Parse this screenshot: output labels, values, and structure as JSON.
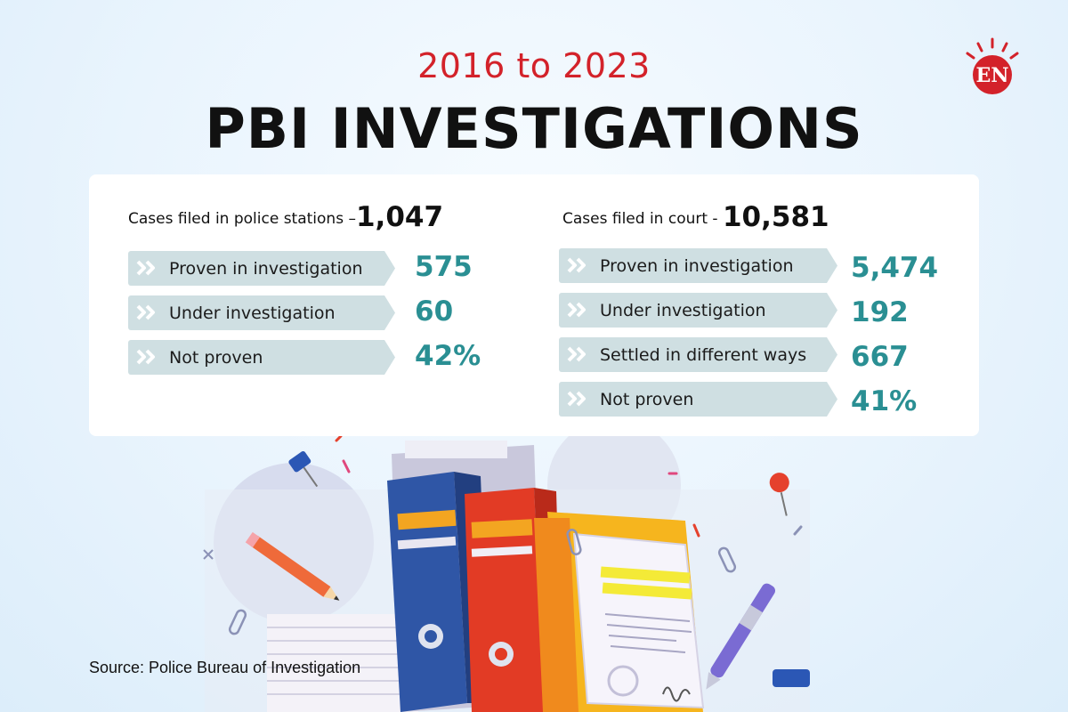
{
  "header": {
    "year_range": "2016 to 2023",
    "title": "PBI INVESTIGATIONS",
    "logo_text": "EN"
  },
  "police": {
    "heading": "Cases filed in police stations –",
    "total": "1,047",
    "rows": [
      {
        "label": "Proven in investigation",
        "value": "575"
      },
      {
        "label": "Under investigation",
        "value": "60"
      },
      {
        "label": "Not proven",
        "value": "42%"
      }
    ]
  },
  "court": {
    "heading": "Cases filed in court -",
    "total": "10,581",
    "rows": [
      {
        "label": "Proven in investigation",
        "value": "5,474"
      },
      {
        "label": "Under investigation",
        "value": "192"
      },
      {
        "label": "Settled in different ways",
        "value": "667"
      },
      {
        "label": "Not proven",
        "value": "41%"
      }
    ]
  },
  "footer": {
    "source": "Source: Police Bureau of Investigation"
  },
  "colors": {
    "accent_red": "#d3222a",
    "value_teal": "#2a8f93",
    "row_bg": "#cfdfe2"
  },
  "icons": [
    "sun-rays-logo-icon",
    "double-chevron-icon",
    "folder-illustration"
  ]
}
